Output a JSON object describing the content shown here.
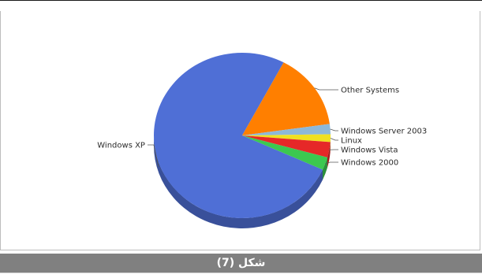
{
  "chart_data": {
    "type": "pie",
    "three_d": true,
    "categories": [
      "Windows XP",
      "Other Systems",
      "Windows Server 2003",
      "Linux",
      "Windows Vista",
      "Windows 2000"
    ],
    "values": [
      76,
      15,
      2,
      1.5,
      3,
      2.5
    ],
    "colors": [
      "#4f6fd6",
      "#ff7f00",
      "#8db8d8",
      "#f0e020",
      "#e62828",
      "#3cc850"
    ],
    "legend": "none"
  },
  "caption": {
    "text": "شكل (7)"
  }
}
